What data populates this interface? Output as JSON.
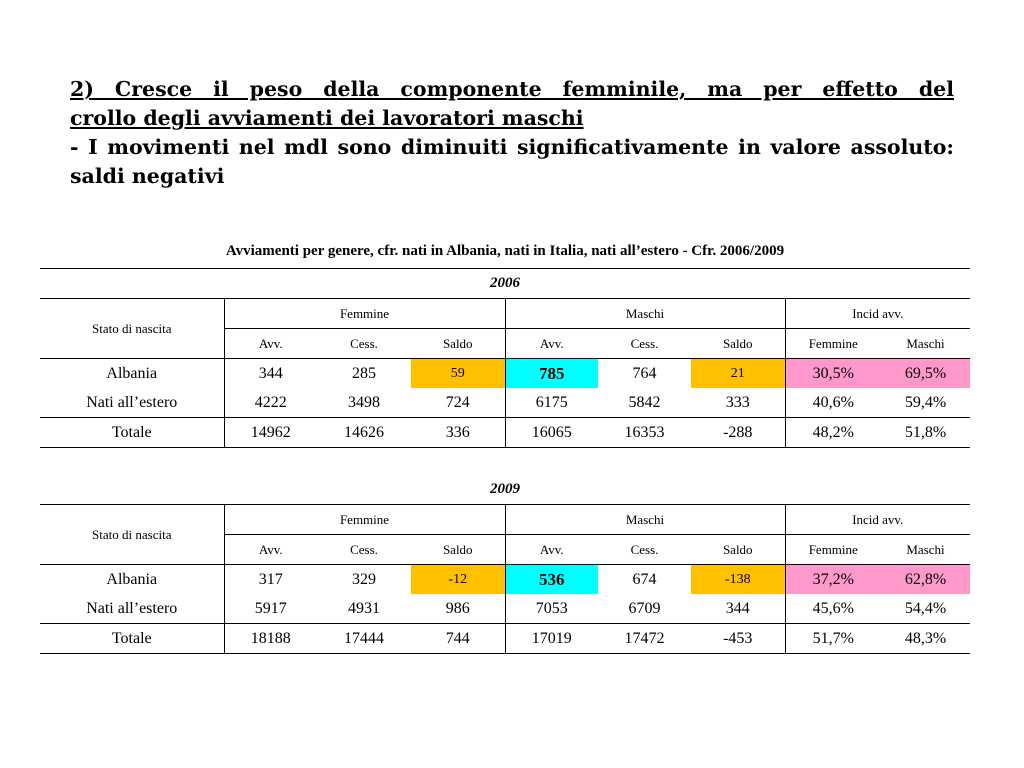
{
  "heading": {
    "line1": "2) Cresce il peso della componente femminile, ma per effetto del",
    "line2": "crollo degli avviamenti dei lavoratori maschi",
    "line3": "- I movimenti nel mdl sono diminuiti significativamente in valore assoluto:",
    "line4": "saldi negativi"
  },
  "table": {
    "title": "Avviamenti per genere, cfr. nati in Albania, nati in Italia, nati all’estero - Cfr. 2006/2009",
    "stato_label": "Stato di nascita",
    "groups": [
      "Femmine",
      "Maschi",
      "Incid avv."
    ],
    "columns": [
      "Avv.",
      "Cess.",
      "Saldo",
      "Avv.",
      "Cess.",
      "Saldo",
      "Femmine",
      "Maschi"
    ],
    "highlight_colors": {
      "saldo": "#ffc000",
      "avv_maschi": "#00ffff",
      "incidenza": "#ff99cc"
    },
    "blocks": [
      {
        "year": "2006",
        "rows": [
          {
            "label": "Albania",
            "values": [
              "344",
              "285",
              "59",
              "785",
              "764",
              "21",
              "30,5%",
              "69,5%"
            ]
          },
          {
            "label": "Nati all’estero",
            "values": [
              "4222",
              "3498",
              "724",
              "6175",
              "5842",
              "333",
              "40,6%",
              "59,4%"
            ]
          },
          {
            "label": "Totale",
            "values": [
              "14962",
              "14626",
              "336",
              "16065",
              "16353",
              "-288",
              "48,2%",
              "51,8%"
            ]
          }
        ]
      },
      {
        "year": "2009",
        "rows": [
          {
            "label": "Albania",
            "values": [
              "317",
              "329",
              "-12",
              "536",
              "674",
              "-138",
              "37,2%",
              "62,8%"
            ]
          },
          {
            "label": "Nati all’estero",
            "values": [
              "5917",
              "4931",
              "986",
              "7053",
              "6709",
              "344",
              "45,6%",
              "54,4%"
            ]
          },
          {
            "label": "Totale",
            "values": [
              "18188",
              "17444",
              "744",
              "17019",
              "17472",
              "-453",
              "51,7%",
              "48,3%"
            ]
          }
        ]
      }
    ]
  }
}
